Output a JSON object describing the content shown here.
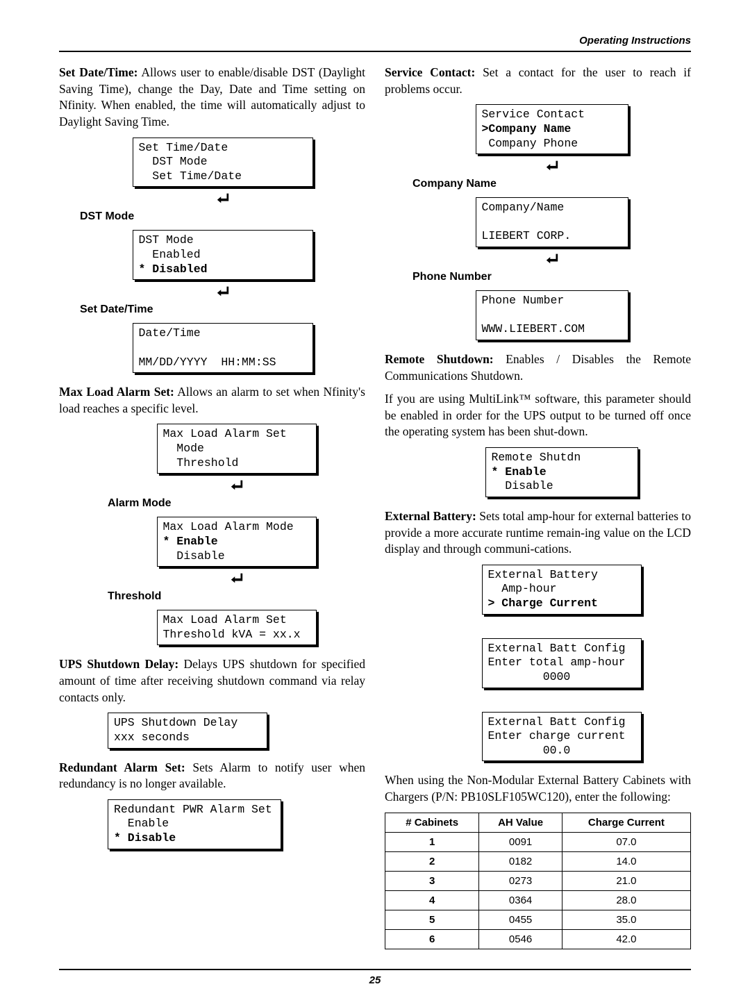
{
  "header": {
    "title": "Operating Instructions"
  },
  "pageNumber": "25",
  "left": {
    "p1": {
      "bold": "Set Date/Time:",
      "text": " Allows user to enable/disable DST (Daylight Saving Time), change the Day, Date and Time setting on Nfinity. When enabled, the time will automatically adjust to Daylight Saving Time."
    },
    "lcd1": {
      "l1": "Set Time/Date",
      "l2": "  DST Mode",
      "l3": "  Set Time/Date"
    },
    "label1": "DST Mode",
    "lcd2": {
      "l1": "DST Mode",
      "l2": "  Enabled",
      "l3": "* Disabled"
    },
    "label2": "Set Date/Time",
    "lcd3": {
      "l1": "Date/Time",
      "l2": " ",
      "l3": "MM/DD/YYYY  HH:MM:SS"
    },
    "p2": {
      "bold": "Max Load Alarm Set:",
      "text": " Allows an alarm to set when Nfinity's load reaches a specific level."
    },
    "lcd4": {
      "l1": "Max Load Alarm Set",
      "l2": "  Mode",
      "l3": "  Threshold"
    },
    "label3": "Alarm Mode",
    "lcd5": {
      "l1": "Max Load Alarm Mode",
      "l2": "* Enable",
      "l3": "  Disable"
    },
    "label4": "Threshold",
    "lcd6": {
      "l1": "Max Load Alarm Set",
      "l2": "Threshold kVA = xx.x"
    },
    "p3": {
      "bold": "UPS Shutdown Delay:",
      "text": " Delays UPS shutdown for specified amount of time after receiving shutdown command via relay contacts only."
    },
    "lcd7": {
      "l1": "UPS Shutdown Delay",
      "l2": "xxx seconds"
    },
    "p4": {
      "bold": "Redundant Alarm Set:",
      "text": " Sets Alarm to notify user when redundancy is no longer available."
    },
    "lcd8": {
      "l1": "Redundant PWR Alarm Set",
      "l2": "  Enable",
      "l3": "* Disable"
    }
  },
  "right": {
    "p1": {
      "bold": "Service Contact:",
      "text": " Set a contact for the user to reach if problems occur."
    },
    "lcd1": {
      "l1": "Service Contact",
      "l2": ">Company Name",
      "l3": " Company Phone"
    },
    "label1": "Company Name",
    "lcd2": {
      "l1": "Company/Name",
      "l2": " ",
      "l3": "LIEBERT CORP."
    },
    "label2": "Phone Number",
    "lcd3": {
      "l1": "Phone Number",
      "l2": " ",
      "l3": "WWW.LIEBERT.COM"
    },
    "p2": {
      "bold": "Remote Shutdown:",
      "text": " Enables / Disables the Remote Communications Shutdown."
    },
    "p3": "If you are using MultiLink™ software, this parameter should be enabled in order for the UPS output to be turned off once the operating system has been shut-down.",
    "lcd4": {
      "l1": "Remote Shutdn",
      "l2": "* Enable",
      "l3": "  Disable"
    },
    "p4": {
      "bold": "External Battery:",
      "text": " Sets total amp-hour for external batteries to provide a more accurate runtime remain-ing value on the LCD display and through communi-cations."
    },
    "lcd5": {
      "l1": "External Battery",
      "l2": "  Amp-hour",
      "l3": "> Charge Current"
    },
    "lcd6": {
      "l1": "External Batt Config",
      "l2": "Enter total amp-hour",
      "l3": "        0000"
    },
    "lcd7": {
      "l1": "External Batt Config",
      "l2": "Enter charge current",
      "l3": "        00.0"
    },
    "p5": "When using the Non-Modular External Battery Cabinets with Chargers (P/N: PB10SLF105WC120), enter the following:",
    "table": {
      "headers": [
        "# Cabinets",
        "AH Value",
        "Charge Current"
      ],
      "rows": [
        [
          "1",
          "0091",
          "07.0"
        ],
        [
          "2",
          "0182",
          "14.0"
        ],
        [
          "3",
          "0273",
          "21.0"
        ],
        [
          "4",
          "0364",
          "28.0"
        ],
        [
          "5",
          "0455",
          "35.0"
        ],
        [
          "6",
          "0546",
          "42.0"
        ]
      ]
    }
  }
}
